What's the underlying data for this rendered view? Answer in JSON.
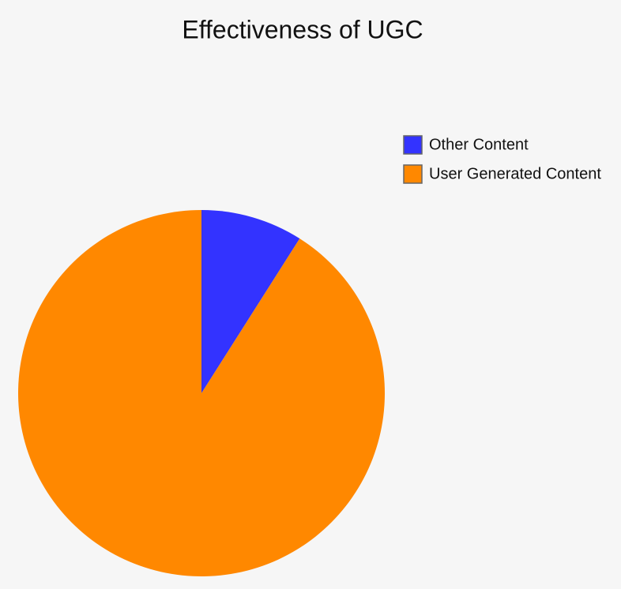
{
  "chart_data": {
    "type": "pie",
    "title": "Effectiveness of UGC",
    "categories": [
      "Other Content",
      "User Generated Content"
    ],
    "values": [
      9,
      91
    ],
    "colors": [
      "#3333ff",
      "#ff8800"
    ],
    "legend": "right"
  }
}
